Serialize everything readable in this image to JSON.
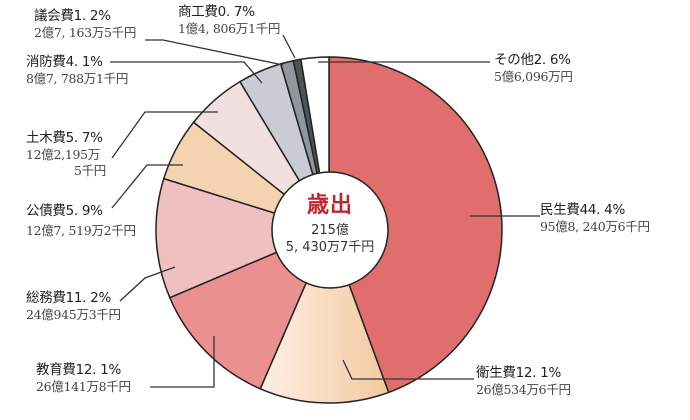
{
  "chart_data": {
    "type": "pie",
    "style": "donut-with-center-label",
    "title": "歳出",
    "total": "215億5,430万7千円",
    "total_lines": [
      "215億",
      "5,430万7千円"
    ],
    "start_angle": "12 o'clock, clockwise",
    "slices": [
      {
        "name": "民生費",
        "percent": 44.4,
        "percent_label": "44.4%",
        "amount": "95億8,240万6千円",
        "color": "#e06e6c"
      },
      {
        "name": "衛生費",
        "percent": 12.1,
        "percent_label": "12.1%",
        "amount": "26億534万6千円",
        "color": "#f3c9a0",
        "color2": "#fdf0e4"
      },
      {
        "name": "教育費",
        "percent": 12.1,
        "percent_label": "12.1%",
        "amount": "26億141万8千円",
        "color": "#ea9090"
      },
      {
        "name": "総務費",
        "percent": 11.2,
        "percent_label": "11.2%",
        "amount": "24億945万3千円",
        "color": "#f0c0c0"
      },
      {
        "name": "公債費",
        "percent": 5.9,
        "percent_label": "5.9%",
        "amount": "12億7,519万2千円",
        "color": "#f4d3b0"
      },
      {
        "name": "土木費",
        "percent": 5.7,
        "percent_label": "5.7%",
        "amount": "12億2,195万5千円",
        "color": "#f2dfe0"
      },
      {
        "name": "消防費",
        "percent": 4.1,
        "percent_label": "4.1%",
        "amount": "8億7,788万1千円",
        "color": "#c9ccd2"
      },
      {
        "name": "議会費",
        "percent": 1.2,
        "percent_label": "1.2%",
        "amount": "2億7,163万5千円",
        "color": "#8f979e"
      },
      {
        "name": "商工費",
        "percent": 0.7,
        "percent_label": "0.7%",
        "amount": "1億4,806万1千円",
        "color": "#4e5558"
      },
      {
        "name": "その他",
        "percent": 2.6,
        "percent_label": "2.6%",
        "amount": "5億6,096万円",
        "color": "#ffffff"
      }
    ]
  },
  "labels": {
    "minsei": {
      "name": "民生費44. 4%",
      "amount": "95億8, 240万6千円"
    },
    "eisei": {
      "name": "衛生費12. 1%",
      "amount": "26億534万6千円"
    },
    "kyouiku": {
      "name": "教育費12. 1%",
      "amount": "26億141万8千円"
    },
    "soumu": {
      "name": "総務費11. 2%",
      "amount": "24億945万3千円"
    },
    "kousai": {
      "name": "公債費5. 9%",
      "amount": "12億7, 519万2千円"
    },
    "doboku": {
      "name": "土木費5. 7%",
      "amount1": "12億2,195万",
      "amount2": "5千円"
    },
    "shoubou": {
      "name": "消防費4. 1%",
      "amount": "8億7, 788万1千円"
    },
    "gikai": {
      "name": "議会費1. 2%",
      "amount": "2億7, 163万5千円"
    },
    "shoukou": {
      "name": "商工費0. 7%",
      "amount": "1億4, 806万1千円"
    },
    "sonota": {
      "name": "その他2. 6%",
      "amount": "5億6,096万円"
    }
  },
  "center": {
    "title": "歳出",
    "line1": "215億",
    "line2": "5, 430万7千円",
    "title_color": "#c0272d"
  }
}
